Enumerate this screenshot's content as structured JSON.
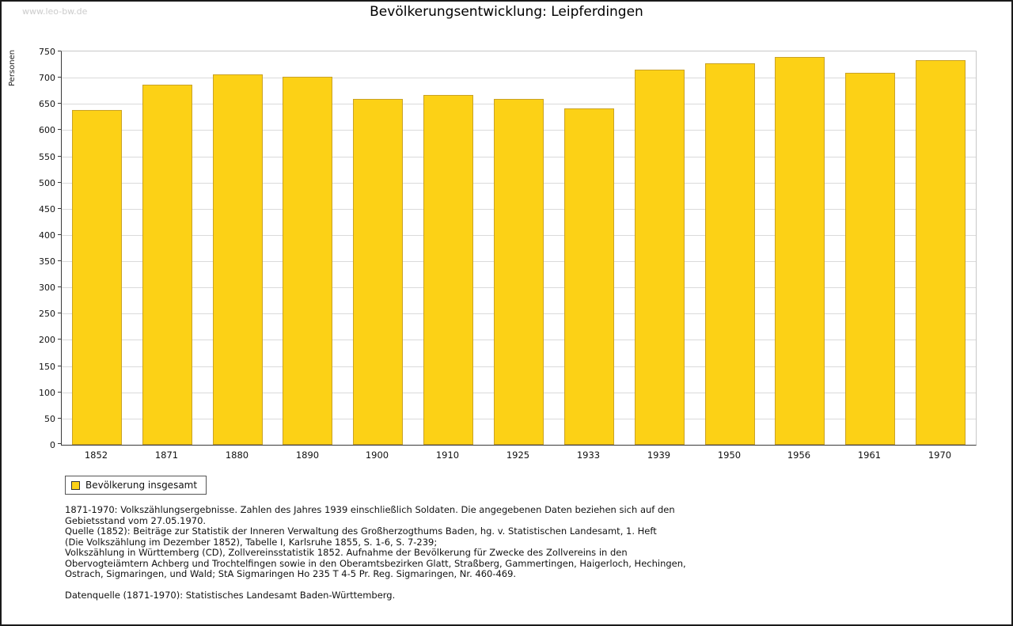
{
  "watermark": "www.leo-bw.de",
  "title": "Bevölkerungsentwicklung: Leipferdingen",
  "chart_data": {
    "type": "bar",
    "title": "Bevölkerungsentwicklung: Leipferdingen",
    "xlabel": "",
    "ylabel": "Personen",
    "ylim": [
      0,
      750
    ],
    "ytick_step": 50,
    "grid": true,
    "legend_position": "bottom-left",
    "categories": [
      "1852",
      "1871",
      "1880",
      "1890",
      "1900",
      "1910",
      "1925",
      "1933",
      "1939",
      "1950",
      "1956",
      "1961",
      "1970"
    ],
    "series": [
      {
        "name": "Bevölkerung insgesamt",
        "values": [
          638,
          687,
          706,
          701,
          660,
          667,
          660,
          641,
          716,
          727,
          739,
          710,
          734
        ]
      }
    ],
    "bar_color": "#FCD116",
    "bar_border_color": "#C9A227"
  },
  "legend": {
    "label": "Bevölkerung insgesamt"
  },
  "footer": {
    "lines": [
      "1871-1970: Volkszählungsergebnisse. Zahlen des Jahres 1939 einschließlich Soldaten. Die angegebenen Daten beziehen sich auf den",
      "Gebietsstand vom 27.05.1970.",
      "Quelle (1852): Beiträge zur Statistik der Inneren Verwaltung des Großherzogthums Baden, hg. v. Statistischen Landesamt, 1. Heft",
      "(Die Volkszählung im Dezember 1852), Tabelle I, Karlsruhe 1855, S. 1-6, S. 7-239;",
      "Volkszählung in Württemberg (CD), Zollvereinsstatistik 1852. Aufnahme der Bevölkerung für Zwecke des Zollvereins in den",
      "Obervogteiämtern Achberg und Trochtelfingen sowie in den Oberamtsbezirken Glatt, Straßberg, Gammertingen, Haigerloch, Hechingen,",
      "Ostrach, Sigmaringen, und Wald; StA Sigmaringen Ho 235 T 4-5 Pr. Reg. Sigmaringen, Nr. 460-469."
    ],
    "datasource": "Datenquelle (1871-1970): Statistisches Landesamt Baden-Württemberg."
  }
}
